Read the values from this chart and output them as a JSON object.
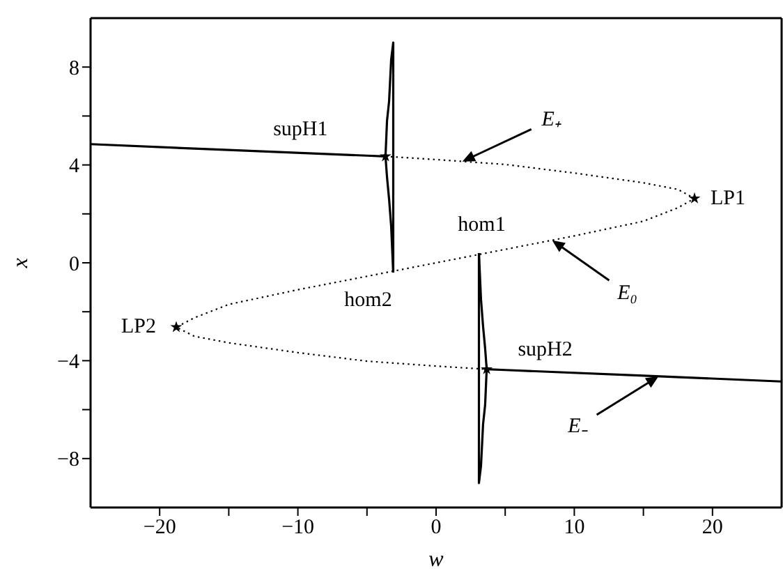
{
  "chart_data": {
    "type": "line",
    "xlabel": "w",
    "ylabel": "x",
    "xlim": [
      -25,
      25
    ],
    "xticks": [
      -20,
      {
        "value": -15,
        "label": null
      },
      -10,
      {
        "value": -5,
        "label": null
      },
      0,
      {
        "value": 5,
        "label": null
      },
      10,
      {
        "value": 15,
        "label": null
      },
      20
    ],
    "ylim": [
      -10,
      10
    ],
    "yticks": [
      -8,
      {
        "value": -6,
        "label": null
      },
      -4,
      {
        "value": -2,
        "label": null
      },
      0,
      {
        "value": 2,
        "label": null
      },
      4,
      {
        "value": 6,
        "label": null
      },
      8
    ],
    "grid": false,
    "legend": false,
    "series": [
      {
        "type": "line",
        "color": "#000000",
        "line_style": "solid",
        "x": [
          -25,
          -15,
          -5,
          -3.66
        ],
        "values": [
          4.85,
          4.61,
          4.38,
          4.35
        ]
      },
      {
        "type": "line",
        "color": "#000000",
        "line_style": "dotted",
        "x": [
          -3.66,
          0,
          5,
          10,
          15,
          17.5,
          18.7,
          17.5,
          15,
          10,
          5,
          0,
          -5,
          -10,
          -15,
          -17.5,
          -18.8,
          -17.5,
          -15,
          -10,
          -5,
          0,
          3.66
        ],
        "values": [
          4.35,
          4.22,
          4.02,
          3.67,
          3.27,
          3.0,
          2.63,
          2.25,
          1.7,
          1.1,
          0.55,
          0,
          -0.55,
          -1.1,
          -1.7,
          -2.25,
          -2.63,
          -3.0,
          -3.27,
          -3.67,
          -4.02,
          -4.22,
          -4.35
        ]
      },
      {
        "type": "line",
        "color": "#000000",
        "line_style": "solid",
        "x": [
          3.66,
          5,
          15,
          25
        ],
        "values": [
          -4.35,
          -4.38,
          -4.61,
          -4.85
        ]
      },
      {
        "type": "line",
        "color": "#000000",
        "line_style": "solid",
        "x": [
          -3.66,
          -3.55,
          -3.4,
          -3.25,
          -3.1,
          -3.1
        ],
        "values": [
          4.35,
          5.8,
          6.6,
          8.3,
          9.0,
          -0.4
        ]
      },
      {
        "type": "line",
        "color": "#000000",
        "line_style": "solid",
        "x": [
          -3.66,
          -3.55,
          -3.4,
          -3.25,
          -3.1
        ],
        "values": [
          4.35,
          3.5,
          2.6,
          1.5,
          -0.4
        ]
      },
      {
        "type": "line",
        "color": "#000000",
        "line_style": "solid",
        "x": [
          3.66,
          3.55,
          3.4,
          3.25,
          3.1,
          3.1
        ],
        "values": [
          -4.35,
          -5.8,
          -6.6,
          -8.3,
          -9.0,
          0.4
        ]
      },
      {
        "type": "line",
        "color": "#000000",
        "line_style": "solid",
        "x": [
          3.66,
          3.55,
          3.4,
          3.25,
          3.1
        ],
        "values": [
          -4.35,
          -3.5,
          -2.6,
          -1.5,
          0.4
        ]
      },
      {
        "type": "scatter",
        "color": "#000000",
        "marker": "star",
        "x": [
          -3.66,
          18.7,
          -18.8,
          3.66
        ],
        "values": [
          4.35,
          2.63,
          -2.63,
          -4.35
        ]
      }
    ],
    "annotations": [
      {
        "text": "supH1",
        "x": -3.66,
        "y": 4.35
      },
      {
        "text": "LP1",
        "x": 18.7,
        "y": 2.63
      },
      {
        "text": "hom1",
        "x": 3.1,
        "y": 0.4
      },
      {
        "text": "hom2",
        "x": -3.1,
        "y": -0.4
      },
      {
        "text": "LP2",
        "x": -18.8,
        "y": -2.63
      },
      {
        "text": "supH2",
        "x": 3.66,
        "y": -4.35
      },
      {
        "text": "E₊",
        "x": 1.9,
        "y": 4.14
      },
      {
        "text": "E₀",
        "x": 8.4,
        "y": 0.92
      },
      {
        "text": "E₋",
        "x": 16.1,
        "y": -4.64
      }
    ]
  }
}
